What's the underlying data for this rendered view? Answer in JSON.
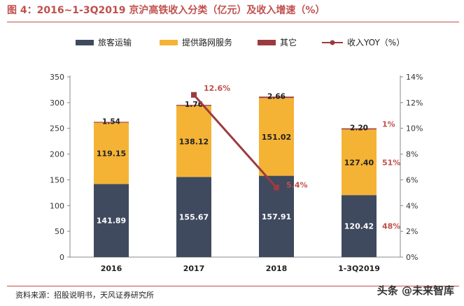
{
  "header": {
    "title": "图 4：2016~1-3Q2019 京沪高铁收入分类（亿元）及收入增速（%）"
  },
  "footer": {
    "source": "资料来源：招股说明书，天风证券研究所",
    "watermark": "头条 @未来智库"
  },
  "colors": {
    "title": "#c0504d",
    "passenger": "#3f4a5e",
    "network": "#f5b335",
    "other": "#9b3b3f",
    "yoy": "#9b3b3f",
    "annotation": "#c0504d"
  },
  "chart_data": {
    "type": "bar",
    "stacked": true,
    "categories": [
      "2016",
      "2017",
      "2018",
      "1-3Q2019"
    ],
    "series": [
      {
        "name": "旅客运输",
        "values": [
          141.89,
          155.67,
          157.91,
          120.42
        ],
        "labels": [
          "141.89",
          "155.67",
          "157.91",
          "120.42"
        ]
      },
      {
        "name": "提供路网服务",
        "values": [
          119.15,
          138.12,
          151.02,
          127.4
        ],
        "labels": [
          "119.15",
          "138.12",
          "151.02",
          "127.40"
        ]
      },
      {
        "name": "其它",
        "values": [
          1.54,
          1.76,
          2.66,
          2.2
        ],
        "labels": [
          "1.54",
          "1.76",
          "2.66",
          "2.20"
        ]
      }
    ],
    "line_series": {
      "name": "收入YOY（%）",
      "axis": "right",
      "x": [
        "2017",
        "2018"
      ],
      "values": [
        12.6,
        5.4
      ],
      "labels": [
        "12.6%",
        "5.4%"
      ]
    },
    "share_labels": [
      {
        "category": "1-3Q2019",
        "series": "其它",
        "label": "1%"
      },
      {
        "category": "1-3Q2019",
        "series": "提供路网服务",
        "label": "51%"
      },
      {
        "category": "1-3Q2019",
        "series": "旅客运输",
        "label": "48%"
      }
    ],
    "y_left": {
      "min": 0,
      "max": 350,
      "ticks": [
        "0",
        "50",
        "100",
        "150",
        "200",
        "250",
        "300",
        "350"
      ]
    },
    "y_right": {
      "min": 0,
      "max": 14,
      "ticks": [
        "0%",
        "2%",
        "4%",
        "6%",
        "8%",
        "10%",
        "12%",
        "14%"
      ]
    },
    "legend_position": "top",
    "grid": false
  }
}
